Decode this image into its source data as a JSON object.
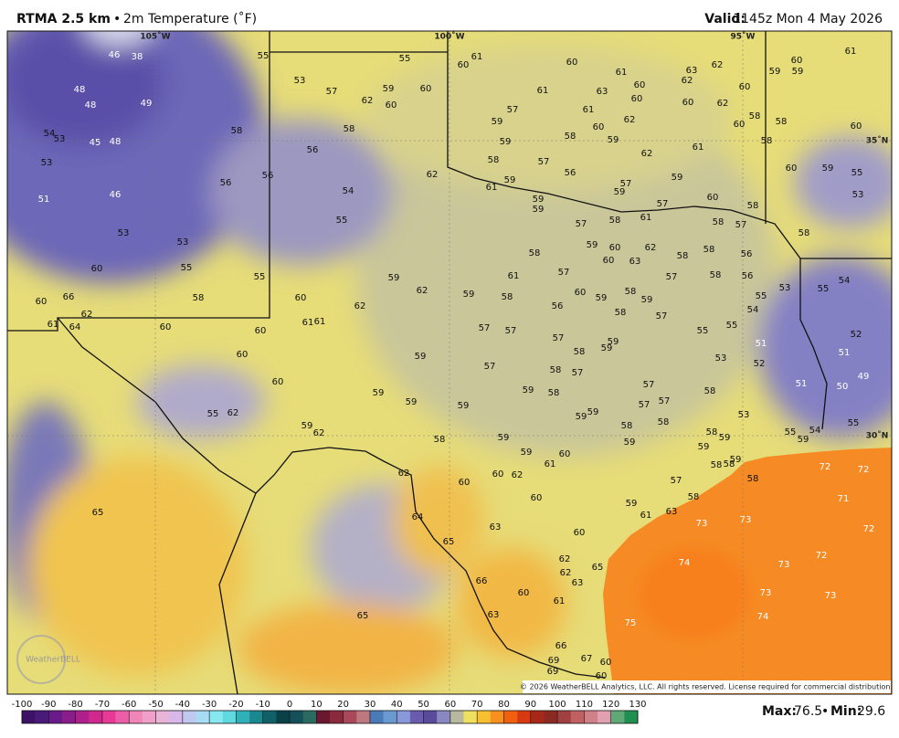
{
  "header": {
    "title": "RTMA 2.5 km",
    "separator": "•",
    "subtitle": "2m Temperature (˚F)",
    "valid_label": "Valid:",
    "valid": "1145z Mon 4 May 2026"
  },
  "map": {
    "lon_labels": [
      "105˚W",
      "100˚W",
      "95˚W"
    ],
    "lat_labels": [
      "35˚N",
      "30˚N"
    ],
    "logo": "WeatherBELL",
    "copyright": "© 2026 WeatherBELL Analytics, LLC. All rights reserved. License required for commercial distribution.",
    "station_values": [
      46,
      38,
      55,
      55,
      60,
      61,
      60,
      61,
      63,
      62,
      59,
      59,
      60,
      61,
      48,
      48,
      49,
      53,
      57,
      62,
      59,
      60,
      60,
      61,
      63,
      60,
      60,
      62,
      60,
      62,
      60,
      54,
      53,
      45,
      48,
      58,
      58,
      59,
      57,
      61,
      62,
      60,
      60,
      58,
      58,
      58,
      60,
      53,
      56,
      59,
      58,
      59,
      62,
      61,
      51,
      46,
      56,
      56,
      54,
      62,
      58,
      57,
      56,
      59,
      61,
      59,
      59,
      57,
      59,
      59,
      57,
      61,
      60,
      58,
      60,
      59,
      55,
      53,
      53,
      53,
      55,
      60,
      58,
      55,
      55,
      57,
      58,
      58,
      57,
      58,
      59,
      60,
      62,
      60,
      63,
      58,
      58,
      56,
      58,
      61,
      57,
      59,
      62,
      59,
      58,
      60,
      59,
      58,
      59,
      57,
      58,
      56,
      55,
      53,
      55,
      54,
      60,
      66,
      62,
      61,
      64,
      60,
      60,
      60,
      62,
      61,
      61,
      56,
      58,
      57,
      54,
      55,
      55,
      57,
      57,
      57,
      59,
      59,
      58,
      51,
      53,
      52,
      52,
      51,
      60,
      59,
      57,
      58,
      57,
      49,
      50,
      51,
      60,
      59,
      59,
      59,
      58,
      57,
      57,
      57,
      58,
      59,
      59,
      59,
      58,
      58,
      53,
      55,
      62,
      59,
      62,
      58,
      59,
      58,
      59,
      59,
      59,
      55,
      59,
      54,
      55,
      59,
      60,
      61,
      59,
      58,
      58,
      58,
      62,
      60,
      60,
      62,
      72,
      72,
      57,
      60,
      65,
      59,
      58,
      61,
      63,
      71,
      64,
      63,
      60,
      73,
      73,
      72,
      65,
      62,
      62,
      65,
      74,
      72,
      73,
      66,
      63,
      60,
      73,
      73,
      61,
      63,
      74,
      65,
      75,
      66,
      67,
      69,
      69,
      60,
      60
    ]
  },
  "colorbar": {
    "ticks": [
      -100,
      -90,
      -80,
      -70,
      -60,
      -50,
      -40,
      -30,
      -20,
      -10,
      0,
      10,
      20,
      30,
      40,
      50,
      60,
      70,
      80,
      90,
      100,
      110,
      120,
      130
    ],
    "lim": [
      -100,
      130
    ],
    "step": 5,
    "colors": [
      "#3d1266",
      "#4a1a7a",
      "#6a1b8a",
      "#8a1c8c",
      "#b0208c",
      "#d0288c",
      "#e63a96",
      "#ec5fa8",
      "#f085b8",
      "#f0a0c8",
      "#e8b4d8",
      "#d8b8e8",
      "#c0c8f0",
      "#a8dcf4",
      "#88e8f0",
      "#60d8e0",
      "#30b0b8",
      "#1a8890",
      "#106068",
      "#0a4048",
      "#14505a",
      "#2a6a60",
      "#6a1830",
      "#8a2a3c",
      "#a8485a",
      "#c07880",
      "#4a7ab8",
      "#6a98d0",
      "#8898d8",
      "#6a5ab0",
      "#5a4a9a",
      "#8a88c0",
      "#b8b8a0",
      "#f0e060",
      "#f8c030",
      "#f89020",
      "#f06010",
      "#d83a10",
      "#a82818",
      "#8a2a20",
      "#a04040",
      "#c06060",
      "#d08088",
      "#e0a0b0",
      "#60a878",
      "#209050"
    ]
  },
  "footer": {
    "max_label": "Max:",
    "max": 76.5,
    "separator": "•",
    "min_label": "Min:",
    "min": 29.6
  }
}
